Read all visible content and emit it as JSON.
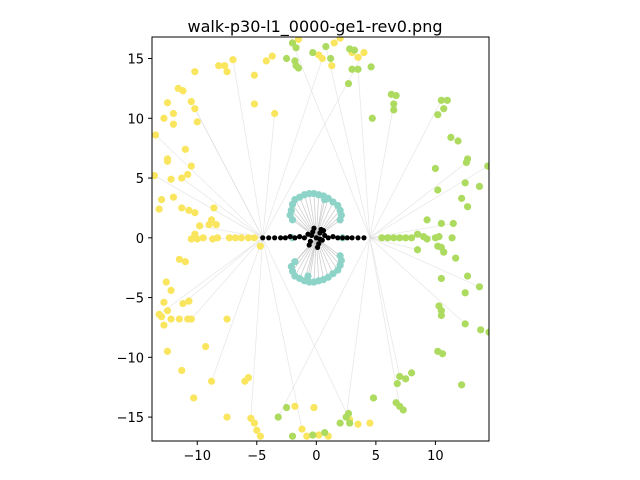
{
  "chart_data": {
    "type": "scatter",
    "title": "walk-p30-l1_0000-ge1-rev0.png",
    "xlabel": "",
    "ylabel": "",
    "xlim": [
      -13.8,
      14.5
    ],
    "ylim": [
      -17,
      16.8
    ],
    "grid": false,
    "legend": "none",
    "x_ticks": [
      -10,
      -5,
      0,
      5,
      10
    ],
    "y_ticks": [
      -15,
      -10,
      -5,
      0,
      5,
      10,
      15
    ],
    "x_tick_labels": [
      "−10",
      "−5",
      "0",
      "5",
      "10"
    ],
    "y_tick_labels": [
      "−15",
      "−10",
      "−5",
      "0",
      "5",
      "10",
      "15"
    ],
    "colors": {
      "yellow": "#f9e55e",
      "green": "#acdb5f",
      "teal": "#8ed3c8",
      "black": "#000000",
      "edge": "#d9d9d9"
    },
    "series": [
      {
        "name": "yellow",
        "color": "#f9e55e",
        "points": [
          [
            -13.5,
            8.6
          ],
          [
            -12.5,
            11.3
          ],
          [
            -12.0,
            10.4
          ],
          [
            -11.2,
            12.3
          ],
          [
            -10.2,
            13.9
          ],
          [
            -10.5,
            11.4
          ],
          [
            -10.0,
            9.7
          ],
          [
            -11.0,
            7.4
          ],
          [
            -10.5,
            6.0
          ],
          [
            -10.8,
            5.3
          ],
          [
            -11.3,
            5.0
          ],
          [
            -12.5,
            6.6
          ],
          [
            -12.2,
            4.9
          ],
          [
            -12.0,
            3.4
          ],
          [
            -13.0,
            3.2
          ],
          [
            -13.6,
            5.2
          ],
          [
            -13.2,
            2.4
          ],
          [
            -11.3,
            2.5
          ],
          [
            -10.7,
            2.3
          ],
          [
            -10.2,
            2.1
          ],
          [
            -9.8,
            1.0
          ],
          [
            -9.0,
            1.1
          ],
          [
            -8.4,
            1.1
          ],
          [
            -10.2,
            0.3
          ],
          [
            -8.6,
            2.5
          ],
          [
            -10.5,
            -0.1
          ],
          [
            -10.0,
            -0.1
          ],
          [
            -9.5,
            0.0
          ],
          [
            -8.7,
            -0.1
          ],
          [
            -8.3,
            0.0
          ],
          [
            -7.3,
            -0.0
          ],
          [
            -6.8,
            0.0
          ],
          [
            -6.3,
            -0.0
          ],
          [
            -5.7,
            0.0
          ],
          [
            -5.2,
            0.0
          ],
          [
            -4.7,
            -0.7
          ],
          [
            -11.5,
            -1.8
          ],
          [
            -11.0,
            -2.0
          ],
          [
            -12.6,
            -3.7
          ],
          [
            -12.2,
            -4.4
          ],
          [
            -11.2,
            -5.5
          ],
          [
            -10.7,
            -5.3
          ],
          [
            -12.8,
            -5.4
          ],
          [
            -12.5,
            -6.1
          ],
          [
            -13.0,
            -6.6
          ],
          [
            -13.2,
            -6.4
          ],
          [
            -12.2,
            -6.8
          ],
          [
            -11.5,
            -6.8
          ],
          [
            -12.8,
            -7.3
          ],
          [
            -10.8,
            -6.8
          ],
          [
            -10.5,
            -6.8
          ],
          [
            -7.5,
            -6.8
          ],
          [
            -12.5,
            -9.5
          ],
          [
            -9.3,
            -9.1
          ],
          [
            -11.3,
            -11.1
          ],
          [
            -8.8,
            -12.0
          ],
          [
            -10.3,
            -13.4
          ],
          [
            -7.5,
            -15.0
          ],
          [
            -6.0,
            -12.0
          ],
          [
            -5.7,
            -11.7
          ],
          [
            -5.5,
            -15.1
          ],
          [
            -5.0,
            -16.1
          ],
          [
            -5.2,
            -15.5
          ],
          [
            -4.7,
            -16.6
          ],
          [
            -1.8,
            -14.1
          ],
          [
            -1.2,
            -16.0
          ],
          [
            -0.2,
            -14.2
          ],
          [
            0.2,
            -16.5
          ],
          [
            -0.8,
            -16.6
          ],
          [
            1.0,
            -16.6
          ],
          [
            2.8,
            -15.2
          ],
          [
            3.5,
            -15.6
          ],
          [
            4.5,
            -15.5
          ],
          [
            -8.2,
            14.4
          ],
          [
            -7.5,
            13.9
          ],
          [
            -7.0,
            14.9
          ],
          [
            -7.7,
            14.4
          ],
          [
            -5.2,
            13.6
          ],
          [
            -3.7,
            15.2
          ],
          [
            -4.2,
            14.8
          ],
          [
            -3.5,
            10.4
          ],
          [
            -5.2,
            11.2
          ],
          [
            -2.0,
            16.3
          ],
          [
            -1.5,
            16.6
          ],
          [
            0.2,
            15.3
          ],
          [
            0.5,
            15.0
          ],
          [
            1.3,
            14.4
          ],
          [
            1.5,
            16.3
          ],
          [
            2.0,
            16.7
          ],
          [
            3.0,
            15.5
          ],
          [
            4.0,
            15.5
          ],
          [
            3.5,
            15.1
          ],
          [
            -12.5,
            6.4
          ],
          [
            -12.8,
            10.0
          ],
          [
            -12.0,
            9.5
          ],
          [
            -10.2,
            10.8
          ],
          [
            -11.6,
            12.5
          ],
          [
            -8.8,
            1.5
          ]
        ]
      },
      {
        "name": "green",
        "color": "#acdb5f",
        "points": [
          [
            -2.0,
            16.3
          ],
          [
            -1.7,
            15.9
          ],
          [
            -2.5,
            15.0
          ],
          [
            -1.7,
            14.4
          ],
          [
            -1.5,
            14.2
          ],
          [
            0.8,
            16.0
          ],
          [
            1.2,
            15.0
          ],
          [
            2.8,
            15.8
          ],
          [
            3.2,
            15.7
          ],
          [
            3.0,
            14.1
          ],
          [
            3.5,
            14.1
          ],
          [
            4.6,
            14.3
          ],
          [
            2.7,
            12.9
          ],
          [
            6.3,
            12.0
          ],
          [
            6.7,
            11.9
          ],
          [
            6.5,
            11.2
          ],
          [
            6.5,
            10.7
          ],
          [
            4.7,
            10.0
          ],
          [
            10.2,
            10.3
          ],
          [
            10.7,
            10.8
          ],
          [
            10.5,
            11.5
          ],
          [
            11.0,
            11.5
          ],
          [
            11.3,
            8.4
          ],
          [
            11.9,
            8.1
          ],
          [
            12.7,
            6.6
          ],
          [
            12.6,
            6.3
          ],
          [
            10.0,
            5.8
          ],
          [
            10.2,
            4.0
          ],
          [
            12.5,
            4.6
          ],
          [
            13.7,
            4.3
          ],
          [
            14.4,
            6.0
          ],
          [
            12.2,
            3.3
          ],
          [
            12.7,
            2.6
          ],
          [
            9.3,
            1.5
          ],
          [
            10.5,
            1.2
          ],
          [
            11.5,
            1.2
          ],
          [
            8.5,
            0.3
          ],
          [
            9.0,
            0.1
          ],
          [
            9.3,
            -0.1
          ],
          [
            10.0,
            0.0
          ],
          [
            10.3,
            0.1
          ],
          [
            11.4,
            0.0
          ],
          [
            5.5,
            0.0
          ],
          [
            6.0,
            0.0
          ],
          [
            6.5,
            0.0
          ],
          [
            7.0,
            0.0
          ],
          [
            7.5,
            0.0
          ],
          [
            8.0,
            0.0
          ],
          [
            10.2,
            -0.7
          ],
          [
            10.5,
            -0.8
          ],
          [
            8.5,
            -1.0
          ],
          [
            10.7,
            -1.2
          ],
          [
            11.7,
            -1.7
          ],
          [
            10.5,
            -3.4
          ],
          [
            12.7,
            -3.2
          ],
          [
            13.7,
            -4.1
          ],
          [
            12.5,
            -4.6
          ],
          [
            10.3,
            -5.7
          ],
          [
            10.5,
            -6.1
          ],
          [
            10.5,
            -6.5
          ],
          [
            12.5,
            -7.2
          ],
          [
            13.8,
            -7.7
          ],
          [
            14.5,
            -7.9
          ],
          [
            10.2,
            -9.5
          ],
          [
            10.6,
            -9.7
          ],
          [
            7.0,
            -11.6
          ],
          [
            7.5,
            -11.8
          ],
          [
            6.8,
            -12.2
          ],
          [
            8.0,
            -11.3
          ],
          [
            6.7,
            -13.8
          ],
          [
            7.0,
            -14.1
          ],
          [
            7.3,
            -14.4
          ],
          [
            12.2,
            -12.3
          ],
          [
            4.8,
            -13.4
          ],
          [
            2.7,
            -14.7
          ],
          [
            2.5,
            -15.0
          ],
          [
            2.8,
            -15.5
          ],
          [
            0.7,
            -16.3
          ],
          [
            -0.3,
            -16.5
          ],
          [
            -2.0,
            -16.6
          ],
          [
            -3.2,
            -15.0
          ],
          [
            -2.5,
            -14.2
          ],
          [
            2.0,
            -15.5
          ],
          [
            -1.8,
            14.8
          ],
          [
            -0.3,
            15.5
          ]
        ]
      },
      {
        "name": "teal",
        "color": "#8ed3c8",
        "points": [
          [
            -1.0,
            3.6
          ],
          [
            -0.6,
            3.7
          ],
          [
            -0.2,
            3.7
          ],
          [
            0.2,
            3.6
          ],
          [
            0.6,
            3.5
          ],
          [
            1.0,
            3.3
          ],
          [
            1.4,
            3.0
          ],
          [
            1.8,
            2.7
          ],
          [
            2.0,
            2.3
          ],
          [
            2.1,
            1.9
          ],
          [
            -1.4,
            3.4
          ],
          [
            -1.8,
            3.2
          ],
          [
            -2.0,
            2.8
          ],
          [
            -2.1,
            2.3
          ],
          [
            -2.2,
            1.9
          ],
          [
            -2.0,
            1.5
          ],
          [
            2.0,
            1.5
          ],
          [
            -1.0,
            -3.6
          ],
          [
            -0.6,
            -3.7
          ],
          [
            -0.2,
            -3.7
          ],
          [
            0.2,
            -3.6
          ],
          [
            0.6,
            -3.5
          ],
          [
            1.0,
            -3.3
          ],
          [
            1.4,
            -3.0
          ],
          [
            1.8,
            -2.7
          ],
          [
            2.0,
            -2.3
          ],
          [
            2.1,
            -1.9
          ],
          [
            -1.4,
            -3.4
          ],
          [
            -1.8,
            -3.2
          ],
          [
            -2.0,
            -2.8
          ],
          [
            -2.1,
            -2.4
          ],
          [
            -1.8,
            -2.0
          ],
          [
            2.0,
            -1.5
          ],
          [
            -2.0,
            0.0
          ],
          [
            2.2,
            0.0
          ],
          [
            -0.7,
            -3.2
          ],
          [
            0.7,
            3.2
          ]
        ]
      },
      {
        "name": "black",
        "color": "#000000",
        "points": [
          [
            -4.5,
            0.0
          ],
          [
            -4.0,
            0.0
          ],
          [
            -3.5,
            0.0
          ],
          [
            -3.0,
            0.0
          ],
          [
            -2.6,
            0.0
          ],
          [
            -2.2,
            0.1
          ],
          [
            -1.8,
            0.0
          ],
          [
            -1.4,
            0.1
          ],
          [
            -1.0,
            0.0
          ],
          [
            -0.7,
            0.3
          ],
          [
            -0.5,
            -0.3
          ],
          [
            -0.3,
            0.5
          ],
          [
            0.0,
            0.0
          ],
          [
            0.2,
            -0.5
          ],
          [
            0.3,
            0.4
          ],
          [
            0.5,
            -0.2
          ],
          [
            0.7,
            0.2
          ],
          [
            1.0,
            0.0
          ],
          [
            1.4,
            0.1
          ],
          [
            1.8,
            0.0
          ],
          [
            2.2,
            0.0
          ],
          [
            2.6,
            0.0
          ],
          [
            3.0,
            0.0
          ],
          [
            3.5,
            0.0
          ],
          [
            4.0,
            0.0
          ],
          [
            -0.2,
            0.8
          ],
          [
            0.1,
            -0.8
          ],
          [
            0.4,
            0.7
          ],
          [
            -0.6,
            -0.6
          ],
          [
            0.6,
            0.6
          ],
          [
            -0.4,
            0.2
          ],
          [
            0.3,
            -0.1
          ]
        ]
      }
    ]
  }
}
